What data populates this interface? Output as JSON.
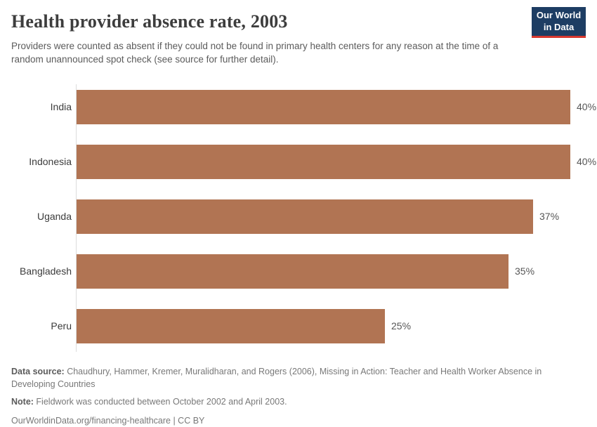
{
  "header": {
    "title": "Health provider absence rate, 2003",
    "subtitle": "Providers were counted as absent if they could not be found in primary health centers for any reason at the time of a random unannounced spot check (see source for further detail)."
  },
  "logo": {
    "line1": "Our World",
    "line2": "in Data",
    "bg_color": "#1d3d63",
    "accent_color": "#d7382e"
  },
  "chart_data": {
    "type": "bar",
    "orientation": "horizontal",
    "title": "Health provider absence rate, 2003",
    "categories": [
      "India",
      "Indonesia",
      "Uganda",
      "Bangladesh",
      "Peru"
    ],
    "values": [
      40,
      40,
      37,
      35,
      25
    ],
    "value_labels": [
      "40%",
      "40%",
      "37%",
      "35%",
      "25%"
    ],
    "unit": "%",
    "xlim": [
      0,
      40
    ],
    "bar_color": "#b17453",
    "axis_color": "#dcdcdc",
    "grid": false,
    "legend": false
  },
  "footer": {
    "datasource_label": "Data source:",
    "datasource_text": " Chaudhury, Hammer, Kremer, Muralidharan, and Rogers (2006), Missing in Action: Teacher and Health Worker Absence in Developing Countries",
    "note_label": "Note:",
    "note_text": " Fieldwork was conducted between October 2002 and April 2003.",
    "citation": "OurWorldinData.org/financing-healthcare | CC BY"
  }
}
